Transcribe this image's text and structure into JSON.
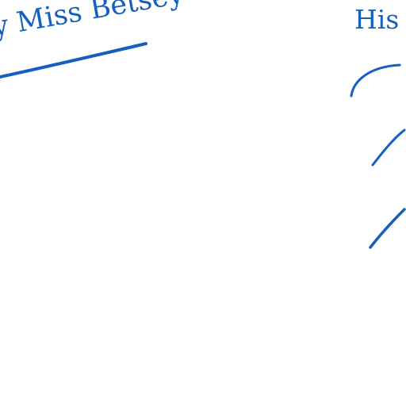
{
  "annotations": {
    "left_label": "y Miss Betsey",
    "right_label": "His"
  },
  "colors": {
    "ink": "#1560bd",
    "background": "#ffffff"
  }
}
